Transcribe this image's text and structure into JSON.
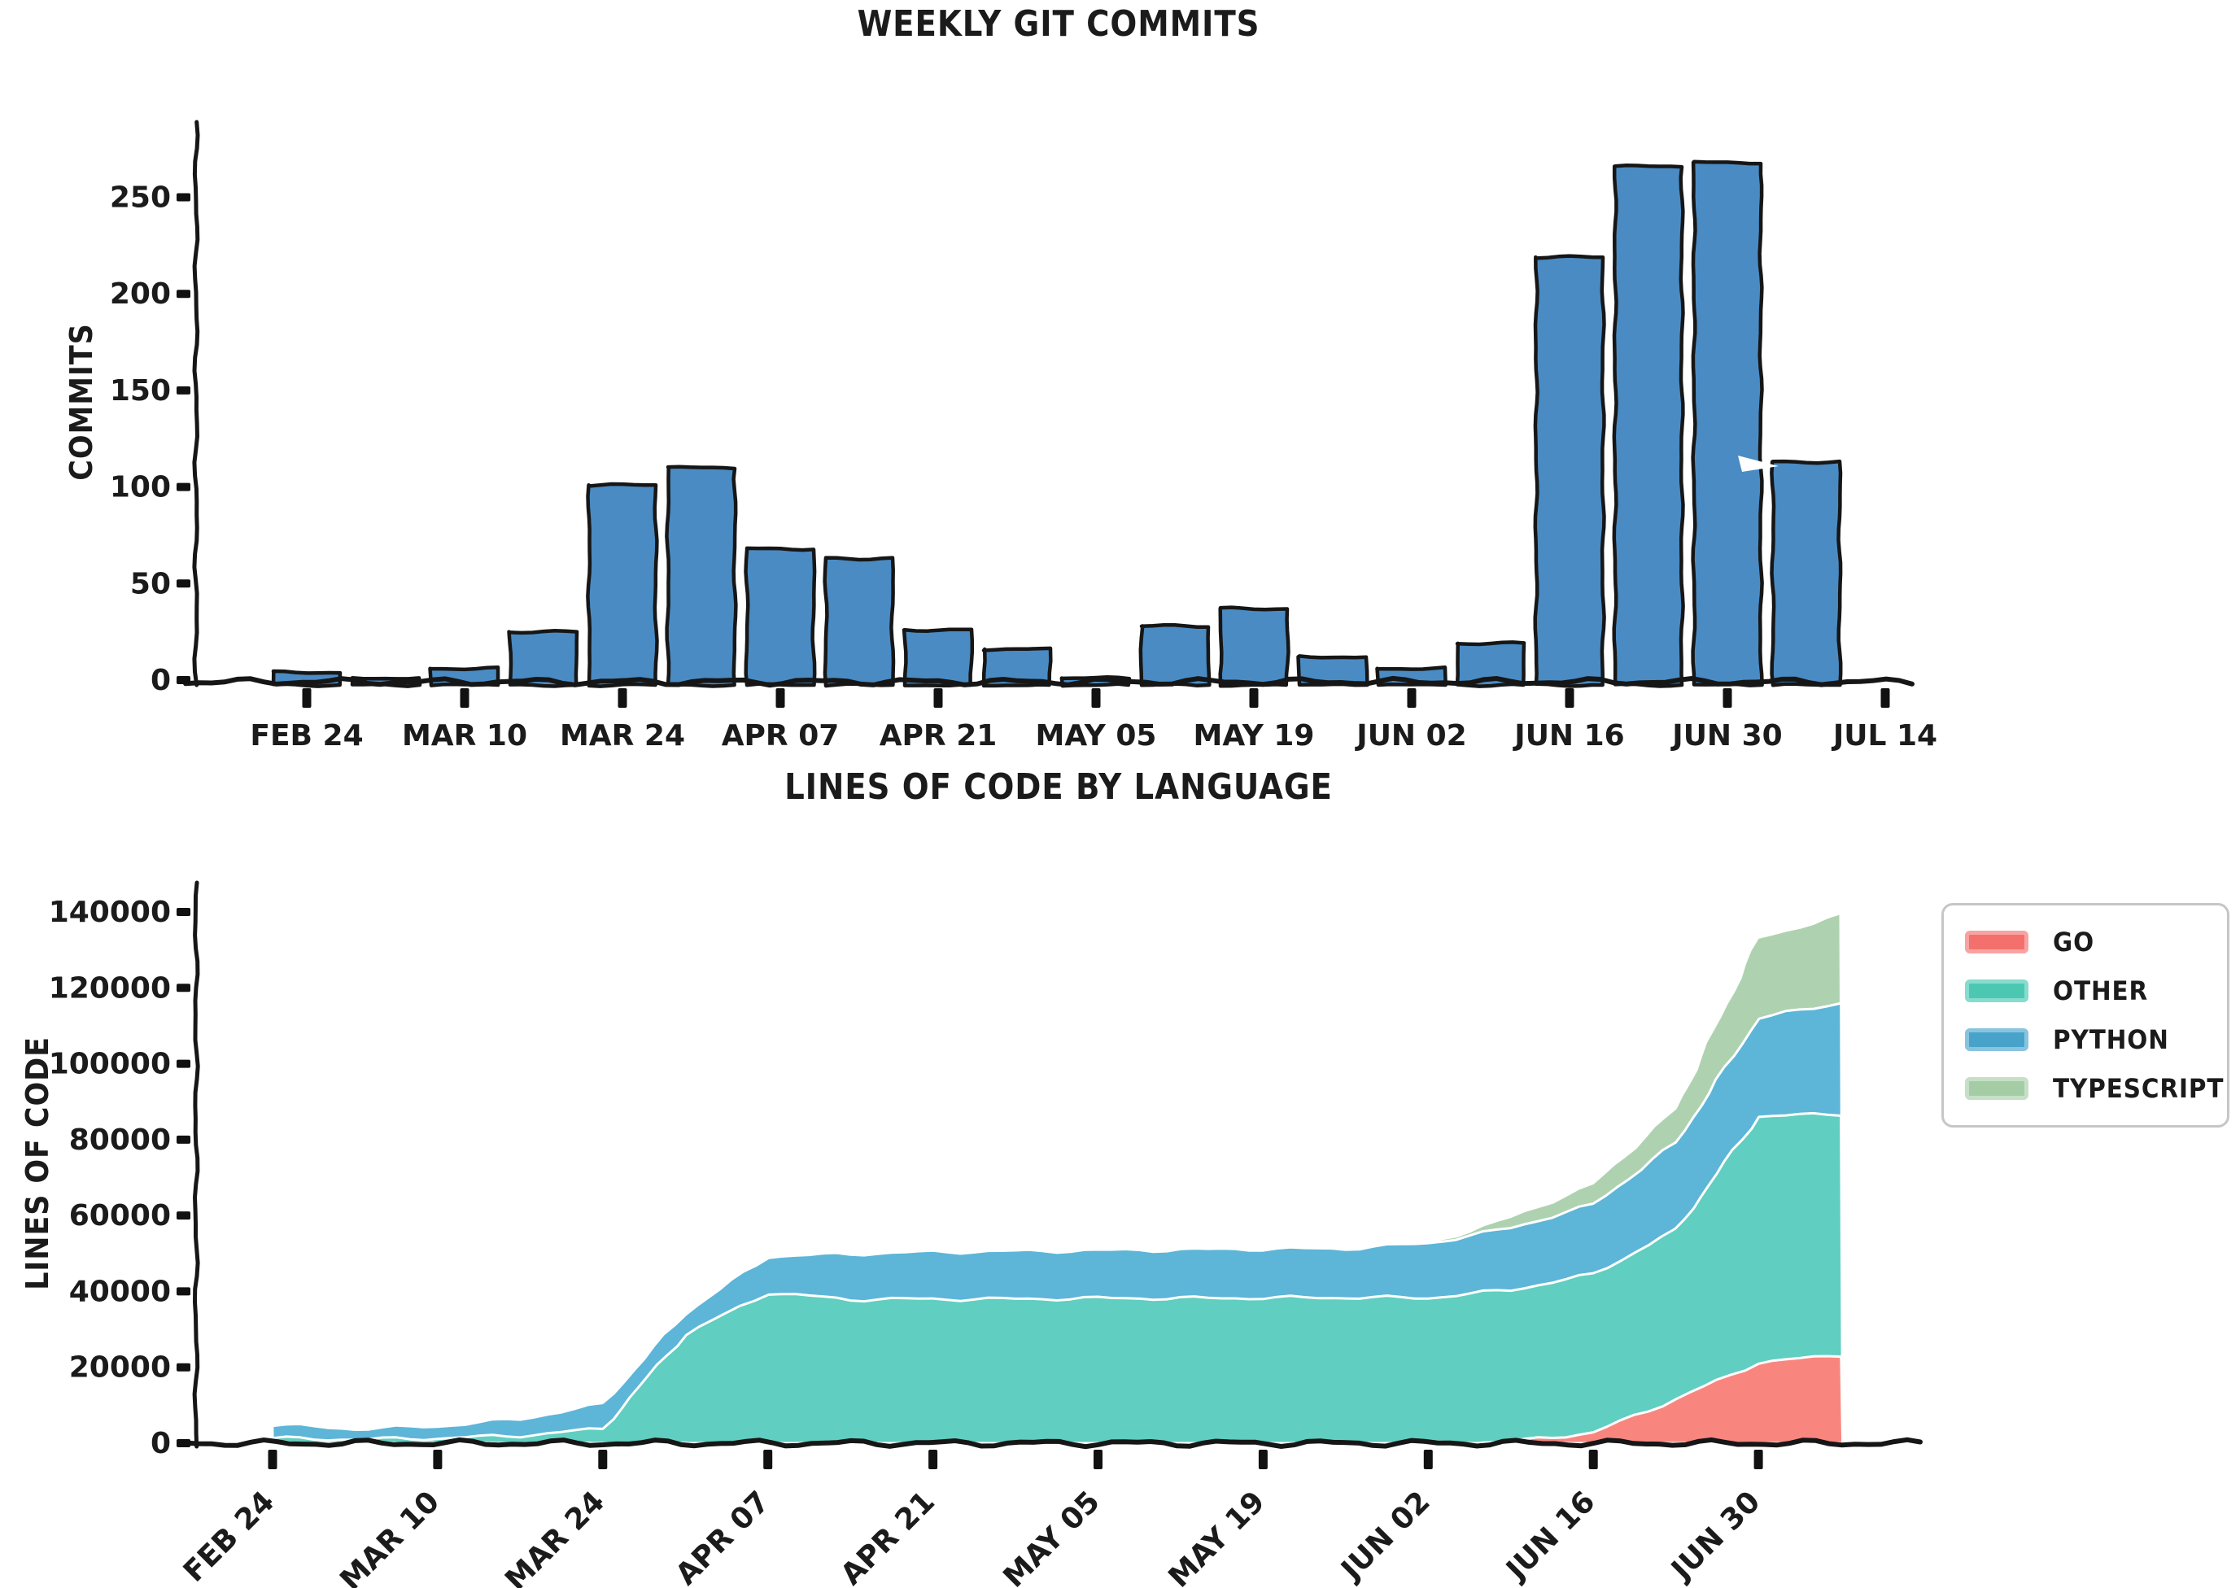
{
  "figure": {
    "background": "#ffffff",
    "text_color": "#1b1b1b",
    "axis_color": "#161616"
  },
  "chart_data": [
    {
      "type": "bar",
      "title": "WEEKLY GIT COMMITS",
      "xlabel": "",
      "ylabel": "COMMITS",
      "categories": [
        "FEB 24",
        "MAR 03",
        "MAR 10",
        "MAR 17",
        "MAR 24",
        "MAR 31",
        "APR 07",
        "APR 14",
        "APR 21",
        "APR 28",
        "MAY 05",
        "MAY 12",
        "MAY 19",
        "MAY 26",
        "JUN 02",
        "JUN 09",
        "JUN 16",
        "JUN 23",
        "JUN 30",
        "JUL 07"
      ],
      "values": [
        4,
        1,
        6,
        25,
        101,
        110,
        68,
        63,
        26,
        16,
        1,
        28,
        37,
        12,
        6,
        19,
        219,
        266,
        268,
        113
      ],
      "x_tick_labels": [
        "FEB 24",
        "MAR 10",
        "MAR 24",
        "APR 07",
        "APR 21",
        "MAY 05",
        "MAY 19",
        "JUN 02",
        "JUN 16",
        "JUN 30",
        "JUL 14"
      ],
      "y_ticks": [
        0,
        50,
        100,
        150,
        200,
        250
      ],
      "y_tick_labels": [
        "0",
        "50",
        "100",
        "150",
        "200",
        "250"
      ],
      "ylim": [
        0,
        289
      ],
      "bar_color": "#4a8bc4",
      "bar_edge_color": "#161616",
      "grid": false,
      "style": "xkcd"
    },
    {
      "type": "area",
      "title": "LINES OF CODE BY LANGUAGE",
      "xlabel": "",
      "ylabel": "LINES OF CODE",
      "categories": [
        "FEB 24",
        "MAR 03",
        "MAR 10",
        "MAR 17",
        "MAR 24",
        "MAR 31",
        "APR 07",
        "APR 14",
        "APR 21",
        "APR 28",
        "MAY 05",
        "MAY 12",
        "MAY 19",
        "MAY 26",
        "JUN 02",
        "JUN 09",
        "JUN 16",
        "JUN 23",
        "JUN 30",
        "JUL 07"
      ],
      "stack_order_bottom_to_top": [
        "GO",
        "OTHER",
        "PYTHON",
        "TYPESCRIPT"
      ],
      "series": [
        {
          "name": "GO",
          "color": "#f8867f",
          "legend_color": "#f4706d",
          "edge_color": "#f8a3a1",
          "values": [
            0,
            0,
            0,
            0,
            0,
            0,
            0,
            0,
            0,
            0,
            0,
            0,
            0,
            0,
            0,
            400,
            2800,
            11600,
            21200,
            23300
          ]
        },
        {
          "name": "OTHER",
          "color": "#60cec0",
          "legend_color": "#4cc8b2",
          "edge_color": "#86dcce",
          "values": [
            1300,
            1000,
            1300,
            2000,
            3800,
            28700,
            39600,
            37900,
            38000,
            38000,
            38200,
            38200,
            38300,
            38400,
            38300,
            40000,
            41700,
            44500,
            64900,
            63500
          ]
        },
        {
          "name": "PYTHON",
          "color": "#5db5d8",
          "legend_color": "#48a3cb",
          "edge_color": "#88c4de",
          "values": [
            3600,
            2800,
            3200,
            4400,
            6500,
            5600,
            9600,
            12000,
            12400,
            12600,
            12600,
            12800,
            12900,
            12900,
            14400,
            16300,
            18400,
            23100,
            25900,
            29300
          ]
        },
        {
          "name": "TYPESCRIPT",
          "color": "#aed2b0",
          "legend_color": "#a4cda6",
          "edge_color": "#c6dfc7",
          "values": [
            0,
            0,
            0,
            0,
            0,
            0,
            0,
            0,
            0,
            0,
            0,
            0,
            0,
            0,
            0,
            2800,
            5400,
            9000,
            21200,
            23100
          ]
        }
      ],
      "x_tick_labels": [
        "FEB 24",
        "MAR 10",
        "MAR 24",
        "APR 07",
        "APR 21",
        "MAY 05",
        "MAY 19",
        "JUN 02",
        "JUN 16",
        "JUN 30"
      ],
      "y_ticks": [
        0,
        20000,
        40000,
        60000,
        80000,
        100000,
        120000,
        140000
      ],
      "y_tick_labels": [
        "0",
        "20000",
        "40000",
        "60000",
        "80000",
        "100000",
        "120000",
        "140000"
      ],
      "ylim": [
        0,
        147000
      ],
      "legend_position": "upper right",
      "grid": false,
      "style": "xkcd"
    }
  ]
}
